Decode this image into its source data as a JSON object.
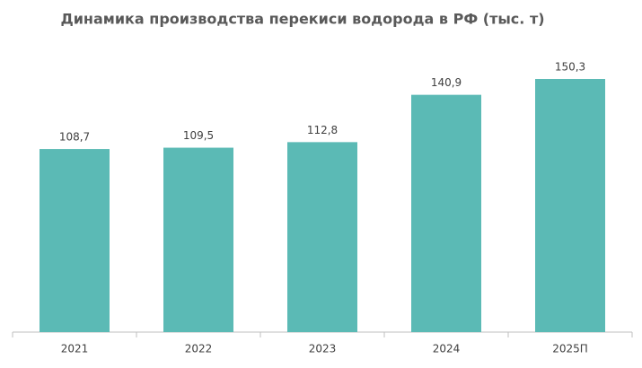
{
  "chart_data": {
    "type": "bar",
    "title": "Динамика производства перекиси водорода в РФ (тыс. т)",
    "categories": [
      "2021",
      "2022",
      "2023",
      "2024",
      "2025П"
    ],
    "values": [
      108.7,
      109.5,
      112.8,
      140.9,
      150.3
    ],
    "value_labels": [
      "108,7",
      "109,5",
      "112,8",
      "140,9",
      "150,3"
    ],
    "color": "#5bbab5"
  }
}
